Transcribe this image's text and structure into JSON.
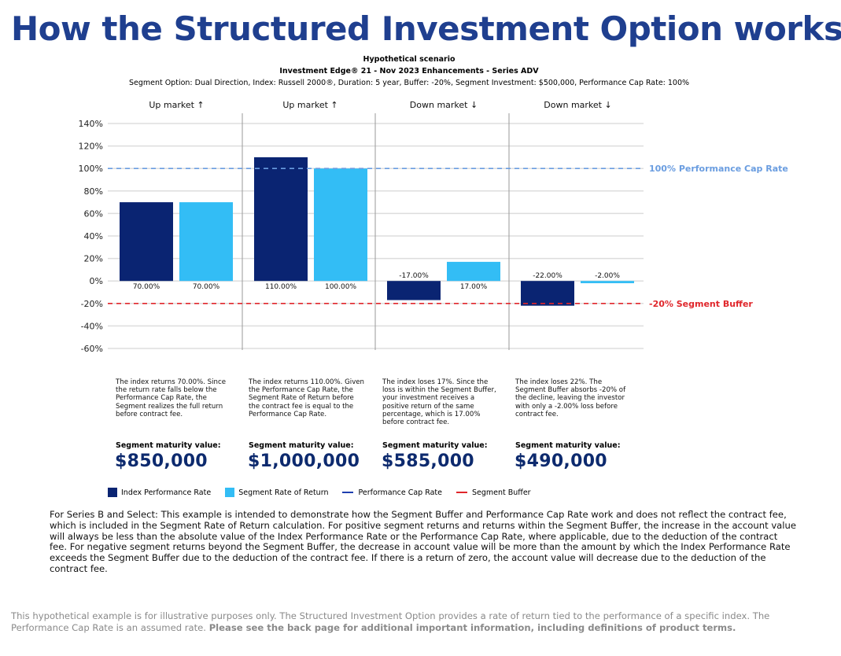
{
  "title": "How the Structured Investment Option works",
  "subtitle1": "Hypothetical scenario",
  "subtitle2": "Investment Edge® 21 - Nov 2023 Enhancements - Series ADV",
  "subtitle3": "Segment Option: Dual Direction, Index: Russell 2000®, Duration: 5 year, Buffer: -20%, Segment Investment: $500,000, Performance Cap Rate: 100%",
  "chart_data": {
    "type": "bar",
    "categories": [
      "Up market ↑",
      "Up market ↑",
      "Down market ↓",
      "Down market ↓"
    ],
    "series": [
      {
        "name": "Index Performance Rate",
        "color": "#0a2472",
        "values": [
          70,
          110,
          -17,
          -22
        ],
        "labels": [
          "70.00%",
          "110.00%",
          "-17.00%",
          "-22.00%"
        ]
      },
      {
        "name": "Segment Rate of Return",
        "color": "#33bdf5",
        "values": [
          70,
          100,
          17,
          -2
        ],
        "labels": [
          "70.00%",
          "100.00%",
          "17.00%",
          "-2.00%"
        ]
      }
    ],
    "ylim": [
      -60,
      140
    ],
    "yticks": [
      140,
      120,
      100,
      80,
      60,
      40,
      20,
      0,
      -20,
      -40,
      -60
    ],
    "ytick_labels": [
      "140%",
      "120%",
      "100%",
      "80%",
      "60%",
      "40%",
      "20%",
      "0%",
      "-20%",
      "-40%",
      "-60%"
    ],
    "reference_lines": [
      {
        "name": "Performance Cap Rate",
        "value": 100,
        "label": "100% Performance Cap Rate",
        "color": "#6a9de0"
      },
      {
        "name": "Segment Buffer",
        "value": -20,
        "label": "-20% Segment Buffer",
        "color": "#e0262b"
      }
    ],
    "grid": true
  },
  "descriptions": [
    "The index returns 70.00%. Since the return rate falls below the Performance Cap Rate, the Segment realizes the full return before contract fee.",
    "The index returns 110.00%. Given the Performance Cap Rate, the Segment Rate of Return before the contract fee is equal to the Performance Cap Rate.",
    "The index loses 17%. Since the loss is within the Segment Buffer, your investment receives a positive return of the same percentage, which is 17.00% before contract fee.",
    "The index loses 22%. The Segment Buffer absorbs -20% of the decline, leaving the investor with only a -2.00% loss before contract fee."
  ],
  "maturity_label": "Segment maturity value:",
  "maturity_values": [
    "$850,000",
    "$1,000,000",
    "$585,000",
    "$490,000"
  ],
  "legend": {
    "index": "Index Performance Rate",
    "segment": "Segment Rate of Return",
    "cap": "Performance Cap Rate",
    "buffer": "Segment Buffer"
  },
  "disclaimer": "For Series B and Select: This example is intended to demonstrate how the Segment Buffer and Performance Cap Rate work and does not reflect the contract fee, which is included in the Segment Rate of Return calculation. For positive segment returns and returns within the Segment Buffer, the increase in the account value will always be less than the absolute value of the Index Performance Rate or the Performance Cap Rate, where applicable, due to the deduction of the contract fee. For negative segment returns beyond the Segment Buffer, the decrease in account value will be more than the amount by which the Index Performance Rate exceeds the Segment Buffer due to the deduction of the contract fee. If there is a return of zero, the account value will decrease due to the deduction of the contract fee.",
  "footer": {
    "text": "This hypothetical example is for illustrative purposes only. The Structured Investment Option provides a rate of return tied to the performance of a specific index. The Performance Cap Rate is an assumed rate. ",
    "bold": "Please see the back page for additional important information, including definitions of product terms."
  }
}
